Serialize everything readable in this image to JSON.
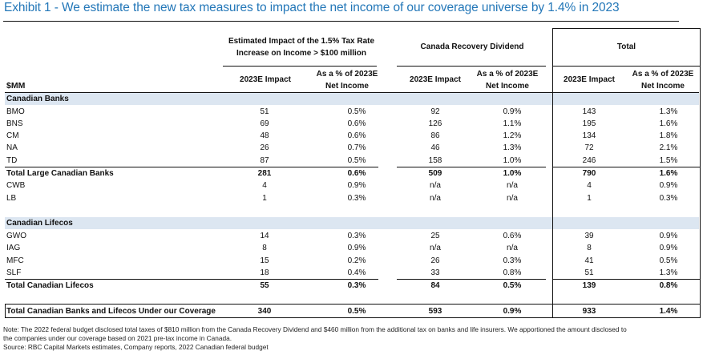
{
  "title": "Exhibit 1 - We estimate the new tax measures to impact the net income of our coverage universe by 1.4% in 2023",
  "header": {
    "unit_label": "$MM",
    "groups": [
      {
        "label_line1": "Estimated Impact of the 1.5% Tax Rate",
        "label_line2": "Increase on Income > $100 million"
      },
      {
        "label_line1": "Canada Recovery Dividend"
      },
      {
        "label_line1": "Total"
      }
    ],
    "sub": {
      "impact": "2023E Impact",
      "pct_line1": "As a % of 2023E",
      "pct_line2": "Net Income"
    }
  },
  "sections": [
    {
      "label": "Canadian Banks"
    },
    {
      "label": "Canadian Lifecos"
    }
  ],
  "rows": [
    {
      "label": "BMO",
      "v": [
        "51",
        "0.5%",
        "92",
        "0.9%",
        "143",
        "1.3%"
      ]
    },
    {
      "label": "BNS",
      "v": [
        "69",
        "0.6%",
        "126",
        "1.1%",
        "195",
        "1.6%"
      ]
    },
    {
      "label": "CM",
      "v": [
        "48",
        "0.6%",
        "86",
        "1.2%",
        "134",
        "1.8%"
      ]
    },
    {
      "label": "NA",
      "v": [
        "26",
        "0.7%",
        "46",
        "1.3%",
        "72",
        "2.1%"
      ]
    },
    {
      "label": "TD",
      "v": [
        "87",
        "0.5%",
        "158",
        "1.0%",
        "246",
        "1.5%"
      ]
    },
    {
      "label": "Total Large Canadian Banks",
      "v": [
        "281",
        "0.6%",
        "509",
        "1.0%",
        "790",
        "1.6%"
      ]
    },
    {
      "label": "CWB",
      "v": [
        "4",
        "0.9%",
        "n/a",
        "n/a",
        "4",
        "0.9%"
      ]
    },
    {
      "label": "LB",
      "v": [
        "1",
        "0.3%",
        "n/a",
        "n/a",
        "1",
        "0.3%"
      ]
    },
    {
      "label": "GWO",
      "v": [
        "14",
        "0.3%",
        "25",
        "0.6%",
        "39",
        "0.9%"
      ]
    },
    {
      "label": "IAG",
      "v": [
        "8",
        "0.9%",
        "n/a",
        "n/a",
        "8",
        "0.9%"
      ]
    },
    {
      "label": "MFC",
      "v": [
        "15",
        "0.2%",
        "26",
        "0.3%",
        "41",
        "0.5%"
      ]
    },
    {
      "label": "SLF",
      "v": [
        "18",
        "0.4%",
        "33",
        "0.8%",
        "51",
        "1.3%"
      ]
    },
    {
      "label": "Total Canadian Lifecos",
      "v": [
        "55",
        "0.3%",
        "84",
        "0.5%",
        "139",
        "0.8%"
      ]
    },
    {
      "label": "Total Canadian Banks and Lifecos Under our Coverage",
      "v": [
        "340",
        "0.5%",
        "593",
        "0.9%",
        "933",
        "1.4%"
      ]
    }
  ],
  "notes": {
    "line1": "Note: The 2022 federal budget disclosed total taxes of $810 million from the Canada Recovery Dividend and $460 million from the additional tax on banks and life insurers. We apportioned the amount disclosed to",
    "line2": "the companies under our coverage based on 2021 pre-tax income in Canada.",
    "source": "Source: RBC Capital Markets estimates, Company reports, 2022 Canadian federal budget"
  }
}
